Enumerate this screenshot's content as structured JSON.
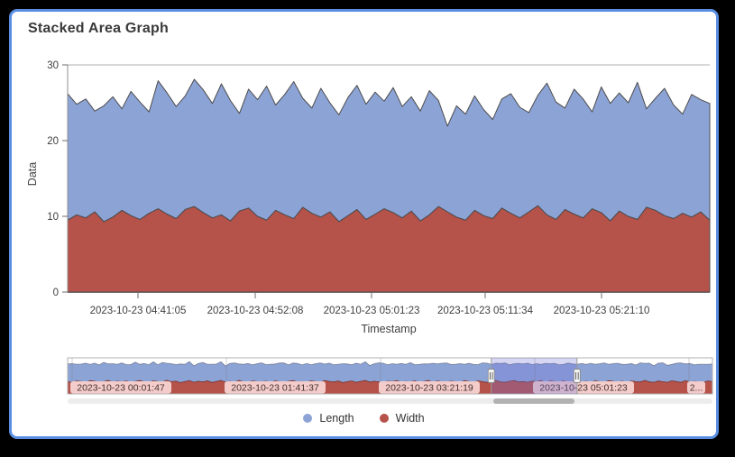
{
  "theme": {
    "page_background": "#000000",
    "card_background": "#ffffff",
    "card_border": "#5b8de1",
    "axis_color": "#8f8f8f",
    "tick_text_color": "#3f3f3f",
    "area_stroke": "#4c4c4c",
    "selection_overlay": "rgba(110,110,215,0.28)",
    "chip_background": "rgba(255,226,224,0.85)",
    "chip_text": "#44332f"
  },
  "chart_data": {
    "type": "area",
    "stacked": true,
    "title": "Stacked Area Graph",
    "xlabel": "Timestamp",
    "ylabel": "Data",
    "ylim": [
      0,
      30
    ],
    "y_ticks": [
      "0",
      "10",
      "20",
      "30"
    ],
    "x_tick_labels": [
      "2023-10-23 04:41:05",
      "2023-10-23 04:52:08",
      "2023-10-23 05:01:23",
      "2023-10-23 05:11:34",
      "2023-10-23 05:21:10"
    ],
    "grid": "top-line-only",
    "legend_position": "bottom-center",
    "legend": [
      {
        "name": "Length",
        "color": "#8ca3d6"
      },
      {
        "name": "Width",
        "color": "#b5524a"
      }
    ],
    "series": [
      {
        "name": "Length",
        "color": "#8ca3d6",
        "values": [
          16.7,
          14.6,
          15.7,
          13.3,
          15.3,
          15.9,
          13.4,
          16.4,
          15.5,
          13.4,
          16.9,
          16.0,
          14.8,
          15.0,
          16.8,
          16.2,
          15.1,
          17.3,
          15.9,
          12.9,
          15.7,
          15.4,
          17.7,
          13.9,
          15.9,
          18.1,
          14.4,
          13.9,
          17.0,
          14.4,
          14.1,
          15.6,
          16.4,
          15.2,
          16.1,
          14.2,
          16.5,
          14.7,
          15.1,
          14.5,
          16.4,
          14.0,
          11.3,
          14.7,
          14.0,
          15.1,
          14.0,
          13.1,
          14.4,
          15.8,
          14.6,
          13.1,
          14.6,
          17.4,
          15.5,
          13.4,
          16.5,
          15.7,
          12.8,
          16.6,
          15.5,
          15.6,
          15.0,
          18.1,
          13.0,
          14.8,
          16.8,
          15.0,
          13.1,
          16.2,
          14.8,
          15.4
        ]
      },
      {
        "name": "Width",
        "color": "#b5524a",
        "values": [
          9.5,
          10.2,
          9.8,
          10.6,
          9.3,
          9.9,
          10.8,
          10.1,
          9.6,
          10.4,
          11.0,
          10.3,
          9.7,
          10.9,
          11.3,
          10.5,
          9.8,
          10.2,
          9.4,
          10.7,
          11.1,
          10.0,
          9.5,
          10.8,
          10.2,
          9.7,
          11.2,
          10.4,
          9.9,
          10.6,
          9.3,
          10.1,
          10.9,
          9.6,
          10.3,
          11.0,
          10.5,
          9.8,
          10.7,
          9.4,
          10.2,
          11.3,
          10.6,
          9.9,
          9.5,
          10.8,
          10.1,
          9.7,
          11.1,
          10.4,
          9.8,
          10.6,
          11.4,
          10.2,
          9.6,
          10.9,
          10.3,
          9.8,
          11.0,
          10.5,
          9.4,
          10.7,
          10.0,
          9.6,
          11.2,
          10.8,
          10.1,
          9.7,
          10.4,
          9.9,
          10.6,
          9.5
        ]
      }
    ],
    "overview": {
      "description": "range selector showing full series",
      "x_tick_labels": [
        "2023-10-23 00:01:47",
        "2023-10-23 01:41:37",
        "2023-10-23 03:21:19",
        "2023-10-23 05:01:23",
        "2..."
      ],
      "selection": {
        "start_frac": 0.657,
        "end_frac": 0.79
      },
      "series": [
        {
          "name": "Length",
          "values": [
            14.8,
            15.6,
            13.9,
            14.5,
            16.2,
            13.6,
            15.1,
            14.3,
            16.0,
            13.8,
            15.4,
            14.0,
            15.9,
            13.7,
            14.9,
            16.1,
            13.5,
            15.3,
            14.6,
            15.8,
            13.9,
            16.3,
            14.2,
            15.0,
            13.8,
            15.5,
            14.4,
            15.9,
            13.6,
            14.8,
            16.2,
            13.9,
            15.2,
            14.5,
            15.7,
            13.4,
            15.0,
            16.1,
            13.7,
            14.6,
            15.8,
            13.5,
            14.9,
            16.0,
            13.8,
            15.3,
            14.1,
            15.6,
            16.2,
            13.6,
            14.7,
            15.5,
            13.9,
            15.8,
            13.4,
            14.9,
            16.1,
            13.7,
            15.2,
            14.4,
            13.9,
            15.7,
            14.8,
            13.5,
            16.0,
            14.3,
            15.5,
            13.8,
            14.6,
            15.9,
            16.2,
            13.6,
            14.9,
            13.7,
            15.6,
            14.2,
            16.1,
            13.5,
            15.0,
            14.7,
            13.8,
            15.9,
            14.3,
            15.5,
            16.0,
            13.9,
            14.5,
            15.8,
            13.6,
            15.2,
            14.8,
            13.5,
            15.6,
            16.1,
            13.8,
            14.4,
            15.3,
            16.2,
            13.7,
            14.0,
            15.5,
            14.6,
            15.9,
            13.8,
            14.9,
            13.5,
            16.0,
            14.3,
            15.1,
            14.4,
            13.8,
            16.2,
            14.7,
            13.6,
            15.4,
            14.0,
            15.8,
            13.7,
            15.0,
            16.1,
            13.6,
            14.8,
            15.7,
            13.9,
            15.2,
            14.5,
            13.8,
            16.0,
            14.2,
            15.6,
            13.7,
            14.9,
            15.8,
            14.1,
            13.6,
            15.3,
            16.2,
            14.0,
            15.5,
            13.8,
            14.6,
            15.1,
            13.9,
            14.7
          ]
        },
        {
          "name": "Width",
          "values": [
            10.1,
            9.6,
            10.8,
            10.3,
            9.4,
            11.0,
            10.5,
            9.8,
            10.2,
            11.2,
            9.7,
            10.6,
            9.9,
            10.7,
            9.5,
            10.4,
            11.1,
            10.0,
            9.6,
            10.9,
            10.3,
            9.8,
            11.3,
            10.1,
            10.6,
            9.4,
            10.2,
            11.0,
            9.7,
            10.5,
            9.9,
            10.8,
            9.5,
            10.3,
            11.1,
            9.8,
            10.4,
            9.7,
            11.2,
            10.0,
            9.5,
            10.7,
            10.2,
            9.9,
            10.6,
            9.3,
            10.8,
            10.1,
            9.6,
            10.5,
            11.0,
            9.8,
            10.3,
            9.5,
            10.9,
            10.2,
            9.7,
            11.1,
            10.4,
            9.9,
            10.7,
            9.4,
            10.1,
            10.8,
            9.6,
            10.4,
            11.2,
            9.8,
            10.5,
            10.0,
            9.3,
            10.6,
            10.2,
            11.0,
            9.7,
            10.4,
            9.9,
            10.8,
            9.5,
            10.3,
            11.1,
            9.6,
            10.7,
            10.0,
            9.8,
            10.6,
            10.1,
            9.4,
            11.0,
            10.3,
            9.7,
            10.9,
            10.2,
            9.5,
            10.8,
            11.2,
            10.0,
            9.6,
            10.5,
            11.1,
            9.9,
            10.3,
            9.7,
            10.6,
            10.2,
            11.0,
            9.4,
            10.8,
            10.3,
            9.8,
            10.7,
            9.5,
            10.2,
            11.1,
            9.9,
            10.5,
            9.6,
            10.9,
            10.1,
            9.7,
            11.0,
            10.4,
            9.8,
            10.6,
            9.3,
            10.8,
            10.2,
            9.9,
            11.2,
            10.0,
            9.6,
            10.7,
            10.1,
            9.7,
            10.9,
            10.3,
            9.5,
            11.0,
            9.8,
            10.4,
            10.0,
            9.6,
            10.8,
            10.2
          ]
        }
      ]
    }
  }
}
